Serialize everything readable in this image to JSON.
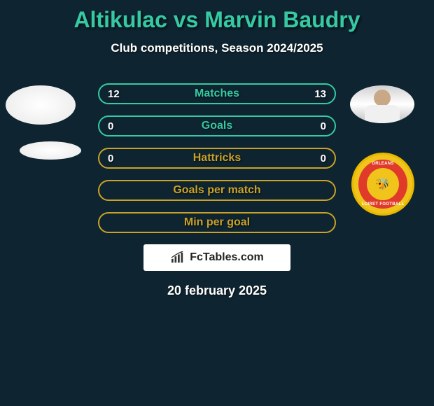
{
  "title": {
    "player1": "Altikulac",
    "vs": "vs",
    "player2": "Marvin Baudry",
    "color": "#36c9a3"
  },
  "subtitle": "Club competitions, Season 2024/2025",
  "rows": [
    {
      "left": "12",
      "label": "Matches",
      "right": "13",
      "border_color": "#36c9a3",
      "label_color": "#36c9a3"
    },
    {
      "left": "0",
      "label": "Goals",
      "right": "0",
      "border_color": "#36c9a3",
      "label_color": "#36c9a3"
    },
    {
      "left": "0",
      "label": "Hattricks",
      "right": "0",
      "border_color": "#c9a227",
      "label_color": "#c9a227"
    },
    {
      "left": "",
      "label": "Goals per match",
      "right": "",
      "border_color": "#c9a227",
      "label_color": "#c9a227"
    },
    {
      "left": "",
      "label": "Min per goal",
      "right": "",
      "border_color": "#c9a227",
      "label_color": "#c9a227"
    }
  ],
  "badge": {
    "outer_bg": "#f0c41a",
    "inner_bg": "#e03a2a",
    "core_bg": "#f0c41a",
    "text_top": "ORLEANS",
    "text_bottom": "LOIRET FOOTBALL"
  },
  "branding": "FcTables.com",
  "date": "20 february 2025",
  "colors": {
    "background": "#0e2430",
    "text": "#ffffff"
  }
}
